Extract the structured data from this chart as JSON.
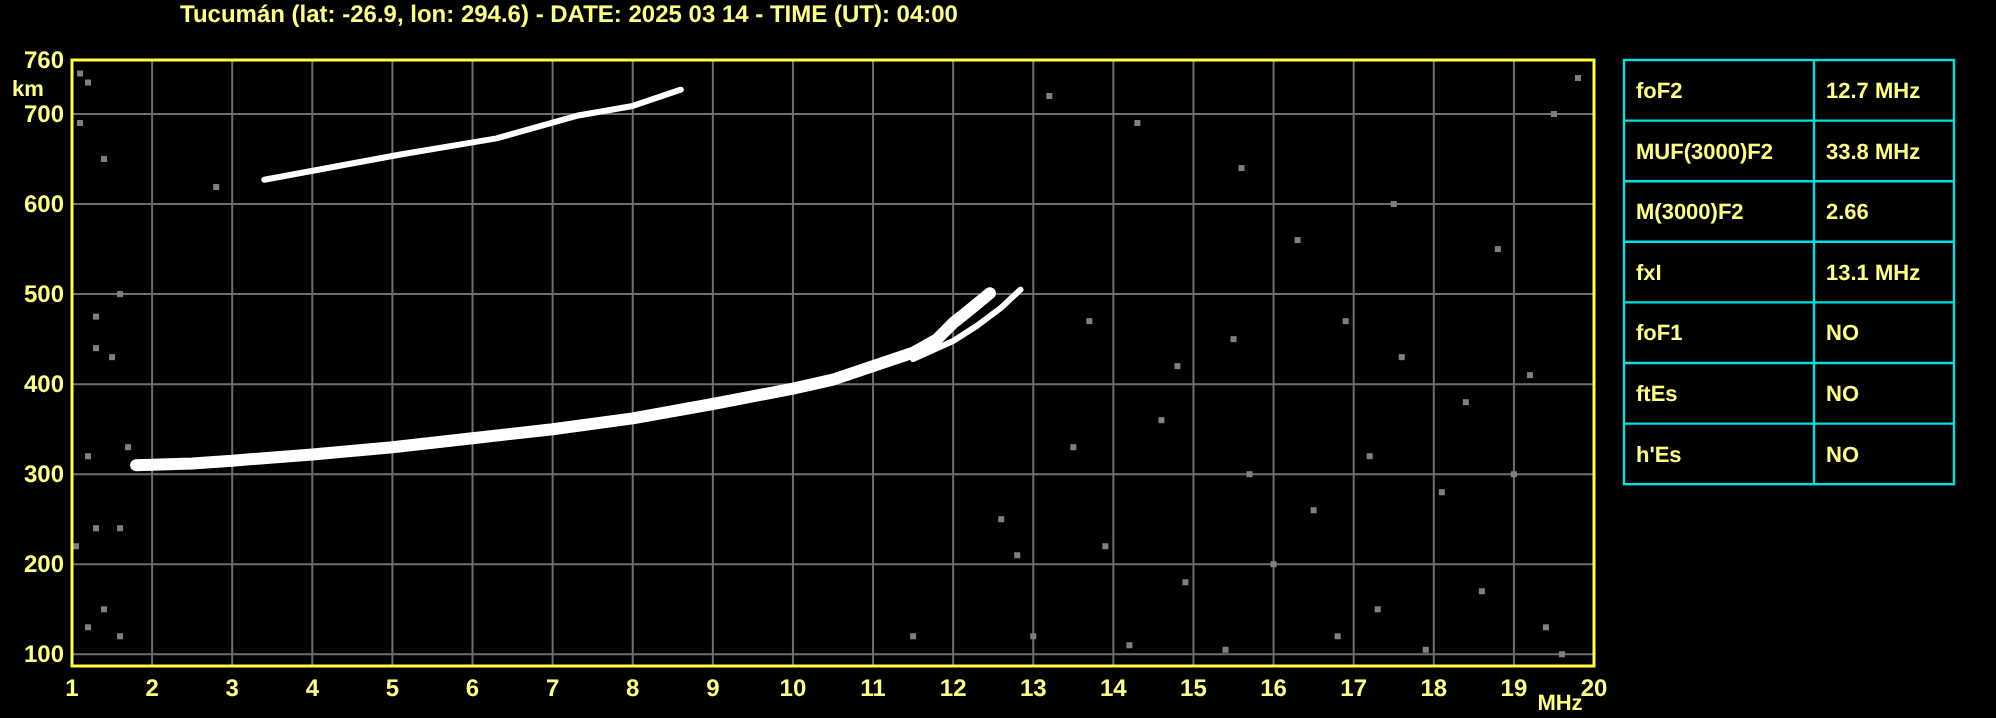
{
  "chart_data": [
    {
      "type": "line",
      "title": "Tucumán (lat: -26.9, lon: 294.6) - DATE: 2025 03 14 - TIME (UT): 04:00",
      "xlabel": "MHz",
      "ylabel": "km",
      "xlim": [
        1,
        20
      ],
      "ylim": [
        87,
        760
      ],
      "xticks": [
        1,
        2,
        3,
        4,
        5,
        6,
        7,
        8,
        9,
        10,
        11,
        12,
        13,
        14,
        15,
        16,
        17,
        18,
        19,
        20
      ],
      "yticks": [
        100,
        200,
        300,
        400,
        500,
        600,
        700,
        760
      ],
      "grid": true,
      "line_style": "solid",
      "series": [
        {
          "type": "line",
          "color": "#ffffff",
          "x": [
            1.8,
            2.5,
            3,
            4,
            5,
            6,
            7,
            8,
            9,
            10,
            10.5,
            11,
            11.5,
            11.8,
            12,
            12.2,
            12.46
          ],
          "values": [
            310,
            312,
            315,
            322,
            330,
            340,
            350,
            362,
            378,
            395,
            405,
            420,
            435,
            450,
            468,
            482,
            501
          ]
        },
        {
          "type": "line",
          "color": "#ffffff",
          "x": [
            11.5,
            12,
            12.3,
            12.6,
            12.84
          ],
          "values": [
            428,
            448,
            465,
            485,
            505
          ]
        },
        {
          "type": "line",
          "color": "#ffffff",
          "x": [
            3.4,
            5.1,
            6.3,
            7.3,
            8,
            8.6
          ],
          "values": [
            627,
            655,
            673,
            698,
            709,
            727
          ]
        },
        {
          "type": "scatter",
          "marker": "square",
          "color": "#808080",
          "x": [
            2.8,
            1.1,
            1.2,
            1.1,
            1.4,
            1.3,
            1.6,
            1.3,
            1.5,
            1.2,
            1.7,
            1.3,
            1.6,
            1.2,
            1.4,
            1.6,
            1.05,
            13.2,
            14.3,
            15.6,
            16.3,
            17.5,
            18.8,
            19.5,
            19.8,
            13.7,
            14.8,
            15.5,
            16.9,
            17.6,
            18.4,
            19.2,
            13.5,
            14.6,
            15.7,
            16.5,
            17.2,
            18.1,
            19,
            13.9,
            14.9,
            16,
            17.3,
            18.6,
            19.4,
            14.2,
            15.4,
            16.8,
            17.9,
            19.6,
            12.6,
            12.8,
            13,
            11.5
          ],
          "values": [
            619,
            745,
            735,
            690,
            650,
            475,
            500,
            440,
            430,
            320,
            330,
            240,
            240,
            130,
            150,
            120,
            220,
            720,
            690,
            640,
            560,
            600,
            550,
            700,
            740,
            470,
            420,
            450,
            470,
            430,
            380,
            410,
            330,
            360,
            300,
            260,
            320,
            280,
            300,
            220,
            180,
            200,
            150,
            170,
            130,
            110,
            105,
            120,
            105,
            100,
            250,
            210,
            120,
            120
          ]
        }
      ]
    },
    {
      "type": "other",
      "color": "#00e0e0",
      "categories": [
        "foF2",
        "MUF(3000)F2",
        "M(3000)F2",
        "fxI",
        "foF1",
        "ftEs",
        "h'Es"
      ],
      "value_labels": [
        "12.7 MHz",
        "33.8 MHz",
        "2.66",
        "13.1 MHz",
        "NO",
        "NO",
        "NO"
      ]
    }
  ]
}
